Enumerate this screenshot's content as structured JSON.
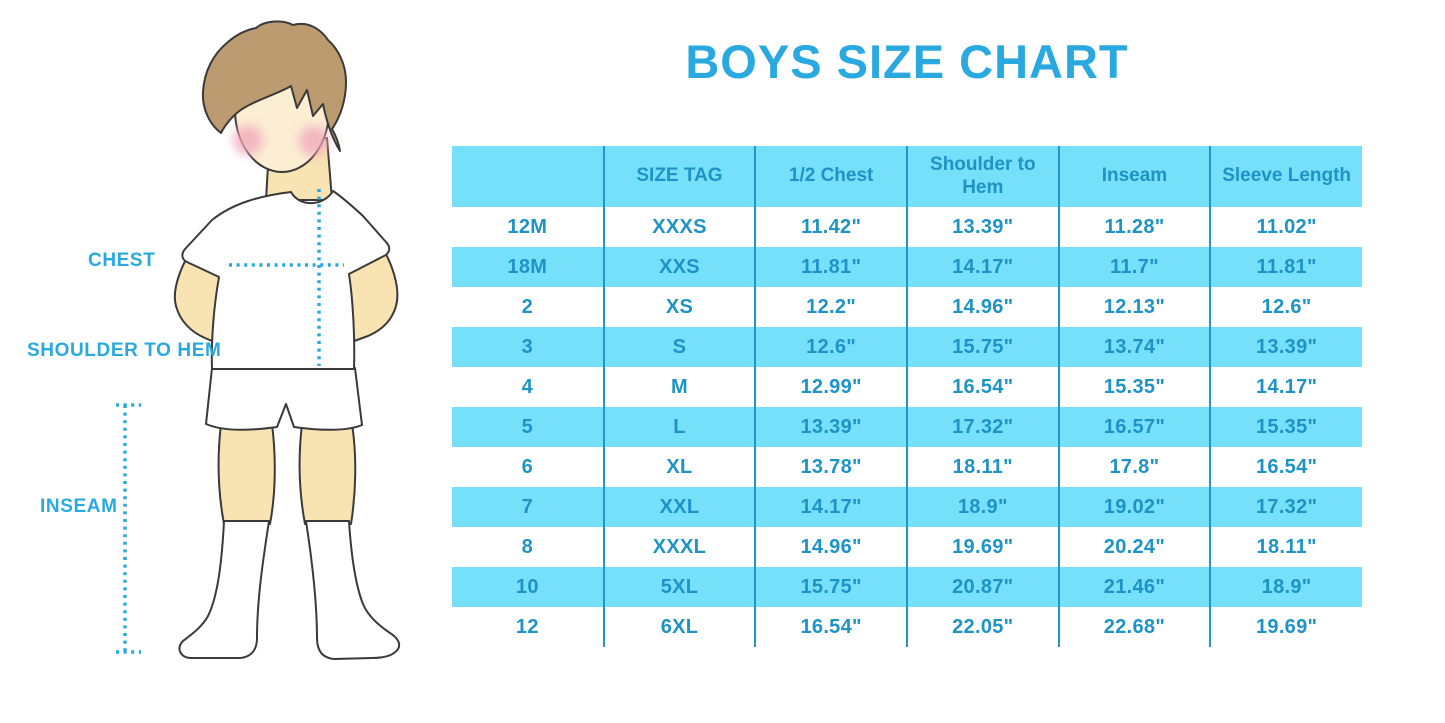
{
  "title": "BOYS SIZE CHART",
  "colors": {
    "accent": "#29a9e0",
    "table_text": "#1e93c5",
    "row_highlight": "#76dffa",
    "divider": "#2196c8"
  },
  "figure": {
    "labels": {
      "chest": "CHEST",
      "shoulder_to_hem": "SHOULDER TO HEM",
      "inseam": "INSEAM"
    }
  },
  "chart_data": {
    "type": "table",
    "title": "BOYS SIZE CHART",
    "columns": [
      "",
      "SIZE TAG",
      "1/2 Chest",
      "Shoulder to Hem",
      "Inseam",
      "Sleeve Length"
    ],
    "rows": [
      [
        "12M",
        "XXXS",
        "11.42\"",
        "13.39\"",
        "11.28\"",
        "11.02\""
      ],
      [
        "18M",
        "XXS",
        "11.81\"",
        "14.17\"",
        "11.7\"",
        "11.81\""
      ],
      [
        "2",
        "XS",
        "12.2\"",
        "14.96\"",
        "12.13\"",
        "12.6\""
      ],
      [
        "3",
        "S",
        "12.6\"",
        "15.75\"",
        "13.74\"",
        "13.39\""
      ],
      [
        "4",
        "M",
        "12.99\"",
        "16.54\"",
        "15.35\"",
        "14.17\""
      ],
      [
        "5",
        "L",
        "13.39\"",
        "17.32\"",
        "16.57\"",
        "15.35\""
      ],
      [
        "6",
        "XL",
        "13.78\"",
        "18.11\"",
        "17.8\"",
        "16.54\""
      ],
      [
        "7",
        "XXL",
        "14.17\"",
        "18.9\"",
        "19.02\"",
        "17.32\""
      ],
      [
        "8",
        "XXXL",
        "14.96\"",
        "19.69\"",
        "20.24\"",
        "18.11\""
      ],
      [
        "10",
        "5XL",
        "15.75\"",
        "20.87\"",
        "21.46\"",
        "18.9\""
      ],
      [
        "12",
        "6XL",
        "16.54\"",
        "22.05\"",
        "22.68\"",
        "19.69\""
      ]
    ],
    "row_highlight_pattern": "alternating, highlighted rows: 18M, 3, 5, 7, 10 and header",
    "layout": {
      "grid": "vertical dividers only",
      "legend": "none"
    }
  }
}
